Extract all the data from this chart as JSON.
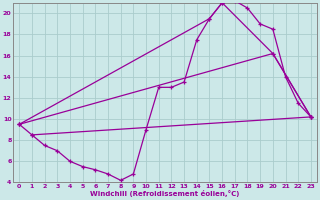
{
  "xlabel": "Windchill (Refroidissement éolien,°C)",
  "bg_color": "#cce8e8",
  "grid_color": "#aacccc",
  "line_color": "#990099",
  "xlim": [
    -0.5,
    23.5
  ],
  "ylim": [
    4,
    21
  ],
  "yticks": [
    4,
    6,
    8,
    10,
    12,
    14,
    16,
    18,
    20
  ],
  "xticks": [
    0,
    1,
    2,
    3,
    4,
    5,
    6,
    7,
    8,
    9,
    10,
    11,
    12,
    13,
    14,
    15,
    16,
    17,
    18,
    19,
    20,
    21,
    22,
    23
  ],
  "line1_x": [
    0,
    1,
    2,
    3,
    4,
    5,
    6,
    7,
    8,
    9,
    10,
    11,
    12,
    13,
    14,
    15,
    16,
    17,
    18,
    19,
    20,
    21,
    22,
    23
  ],
  "line1_y": [
    9.5,
    8.5,
    7.5,
    7.0,
    6.0,
    5.5,
    5.2,
    4.8,
    4.2,
    4.8,
    9.0,
    13.0,
    13.0,
    13.5,
    17.5,
    19.5,
    21.0,
    21.2,
    20.5,
    19.0,
    18.5,
    14.0,
    11.5,
    10.2
  ],
  "line2_x": [
    0,
    15,
    16,
    20,
    23
  ],
  "line2_y": [
    9.5,
    19.5,
    21.0,
    16.2,
    10.2
  ],
  "line3_x": [
    0,
    20,
    23
  ],
  "line3_y": [
    9.5,
    16.2,
    10.2
  ],
  "line4_x": [
    1,
    23
  ],
  "line4_y": [
    8.5,
    10.2
  ]
}
